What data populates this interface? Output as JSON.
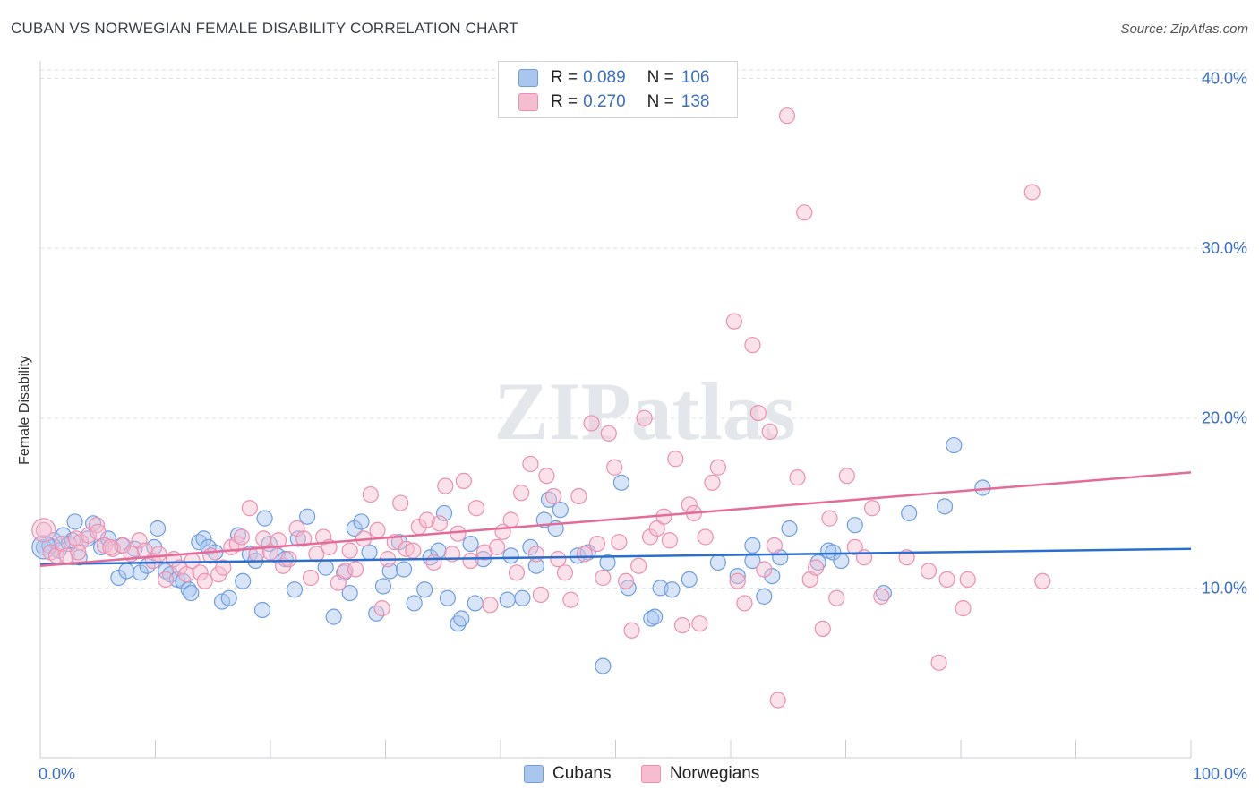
{
  "title": "CUBAN VS NORWEGIAN FEMALE DISABILITY CORRELATION CHART",
  "source": "Source: ZipAtlas.com",
  "watermark": "ZIPatlas",
  "legend": {
    "rows": [
      {
        "r_label": "R =",
        "r_value": "0.089",
        "n_label": "N =",
        "n_value": "106"
      },
      {
        "r_label": "R =",
        "r_value": "0.270",
        "n_label": "N =",
        "n_value": "138"
      }
    ]
  },
  "bottom_legend": [
    "Cubans",
    "Norwegians"
  ],
  "colors": {
    "cubans_fill": "#a9c6ef",
    "cubans_stroke": "#6f9de0",
    "cubans_line": "#2b6fce",
    "norwegians_fill": "#f6bcd0",
    "norwegians_stroke": "#ec8fb0",
    "norwegians_line": "#e46a98",
    "tick_text": "#3a6fc4",
    "grid": "#dcdfe4"
  },
  "chart_data": {
    "type": "scatter",
    "title": "CUBAN VS NORWEGIAN FEMALE DISABILITY CORRELATION CHART",
    "xlabel": "",
    "ylabel": "Female Disability",
    "xlim": [
      0,
      100
    ],
    "ylim": [
      0,
      40.5
    ],
    "x_tick_labels": [
      "0.0%",
      "100.0%"
    ],
    "y_ticks": [
      10,
      20,
      30,
      40
    ],
    "y_tick_labels": [
      "10.0%",
      "20.0%",
      "30.0%",
      "40.0%"
    ],
    "grid": true,
    "legend_position": "top-center",
    "series": [
      {
        "name": "Cubans",
        "R": 0.089,
        "N": 106,
        "trend": [
          [
            0,
            11.4
          ],
          [
            100,
            12.3
          ]
        ],
        "points": [
          [
            0.3,
            12.4
          ],
          [
            0.8,
            12.5
          ],
          [
            1.2,
            12.8
          ],
          [
            1.6,
            12.2
          ],
          [
            2.0,
            13.1
          ],
          [
            2.5,
            12.6
          ],
          [
            3.0,
            13.9
          ],
          [
            3.4,
            11.8
          ],
          [
            4.1,
            12.9
          ],
          [
            4.6,
            13.8
          ],
          [
            5.3,
            12.4
          ],
          [
            5.9,
            12.9
          ],
          [
            6.8,
            10.6
          ],
          [
            7.1,
            12.5
          ],
          [
            7.5,
            11.0
          ],
          [
            8.2,
            12.3
          ],
          [
            8.7,
            10.9
          ],
          [
            9.3,
            11.3
          ],
          [
            9.9,
            12.4
          ],
          [
            10.2,
            13.5
          ],
          [
            10.9,
            11.0
          ],
          [
            11.3,
            10.8
          ],
          [
            11.9,
            10.5
          ],
          [
            12.4,
            10.4
          ],
          [
            12.9,
            9.9
          ],
          [
            13.1,
            9.7
          ],
          [
            13.8,
            12.7
          ],
          [
            14.2,
            12.9
          ],
          [
            14.6,
            12.4
          ],
          [
            15.2,
            12.1
          ],
          [
            15.8,
            9.2
          ],
          [
            16.4,
            9.4
          ],
          [
            17.2,
            13.1
          ],
          [
            17.6,
            10.4
          ],
          [
            18.2,
            12.0
          ],
          [
            18.7,
            11.6
          ],
          [
            19.3,
            8.7
          ],
          [
            19.5,
            14.1
          ],
          [
            19.9,
            12.6
          ],
          [
            20.6,
            11.9
          ],
          [
            21.3,
            11.7
          ],
          [
            22.1,
            9.9
          ],
          [
            22.4,
            12.9
          ],
          [
            23.2,
            14.2
          ],
          [
            24.8,
            11.2
          ],
          [
            25.5,
            8.3
          ],
          [
            26.4,
            10.9
          ],
          [
            26.9,
            9.7
          ],
          [
            27.3,
            13.5
          ],
          [
            27.9,
            13.9
          ],
          [
            28.6,
            12.1
          ],
          [
            29.2,
            8.5
          ],
          [
            29.8,
            10.1
          ],
          [
            30.4,
            11.0
          ],
          [
            31.2,
            12.7
          ],
          [
            31.6,
            11.1
          ],
          [
            32.5,
            9.1
          ],
          [
            33.4,
            9.9
          ],
          [
            33.9,
            11.8
          ],
          [
            34.6,
            12.2
          ],
          [
            35.1,
            14.4
          ],
          [
            35.4,
            9.4
          ],
          [
            36.3,
            7.9
          ],
          [
            36.6,
            8.2
          ],
          [
            37.4,
            12.6
          ],
          [
            37.8,
            9.1
          ],
          [
            38.5,
            11.7
          ],
          [
            40.6,
            9.3
          ],
          [
            40.9,
            11.9
          ],
          [
            41.9,
            9.4
          ],
          [
            42.6,
            12.4
          ],
          [
            43.1,
            11.3
          ],
          [
            43.8,
            14.0
          ],
          [
            44.2,
            15.2
          ],
          [
            44.8,
            13.5
          ],
          [
            45.2,
            14.6
          ],
          [
            46.7,
            11.9
          ],
          [
            47.6,
            12.1
          ],
          [
            48.9,
            5.4
          ],
          [
            49.3,
            11.5
          ],
          [
            50.5,
            16.2
          ],
          [
            51.1,
            10.0
          ],
          [
            53.1,
            8.2
          ],
          [
            53.4,
            8.3
          ],
          [
            53.9,
            10.0
          ],
          [
            54.9,
            9.9
          ],
          [
            56.4,
            10.5
          ],
          [
            58.9,
            11.5
          ],
          [
            60.6,
            10.7
          ],
          [
            61.9,
            12.5
          ],
          [
            61.9,
            11.6
          ],
          [
            62.9,
            9.5
          ],
          [
            63.6,
            10.7
          ],
          [
            64.3,
            11.8
          ],
          [
            65.1,
            13.5
          ],
          [
            67.6,
            11.5
          ],
          [
            68.5,
            12.2
          ],
          [
            68.9,
            12.1
          ],
          [
            69.6,
            11.6
          ],
          [
            70.8,
            13.7
          ],
          [
            73.3,
            9.7
          ],
          [
            75.5,
            14.4
          ],
          [
            78.6,
            14.8
          ],
          [
            79.4,
            18.4
          ],
          [
            81.9,
            15.9
          ],
          [
            2.8,
            12.8
          ]
        ]
      },
      {
        "name": "Norwegians",
        "R": 0.27,
        "N": 138,
        "trend": [
          [
            0,
            11.3
          ],
          [
            100,
            16.8
          ]
        ],
        "points": [
          [
            0.3,
            13.4
          ],
          [
            0.9,
            12.1
          ],
          [
            1.4,
            11.9
          ],
          [
            1.9,
            12.6
          ],
          [
            2.3,
            11.9
          ],
          [
            3.1,
            12.9
          ],
          [
            3.5,
            12.7
          ],
          [
            4.2,
            13.1
          ],
          [
            4.9,
            13.7
          ],
          [
            5.6,
            12.5
          ],
          [
            6.3,
            12.3
          ],
          [
            7.2,
            12.5
          ],
          [
            7.9,
            12.0
          ],
          [
            8.6,
            12.8
          ],
          [
            9.1,
            12.2
          ],
          [
            9.8,
            11.6
          ],
          [
            10.3,
            12.0
          ],
          [
            10.9,
            10.5
          ],
          [
            11.6,
            11.7
          ],
          [
            12.1,
            11.2
          ],
          [
            12.7,
            10.8
          ],
          [
            13.2,
            11.6
          ],
          [
            13.9,
            10.9
          ],
          [
            14.3,
            10.4
          ],
          [
            14.8,
            11.9
          ],
          [
            15.5,
            10.8
          ],
          [
            15.9,
            11.2
          ],
          [
            16.6,
            12.4
          ],
          [
            17.1,
            12.6
          ],
          [
            17.5,
            13.0
          ],
          [
            18.2,
            14.7
          ],
          [
            18.8,
            12.0
          ],
          [
            19.4,
            12.9
          ],
          [
            20.0,
            12.1
          ],
          [
            20.7,
            12.8
          ],
          [
            21.1,
            11.3
          ],
          [
            21.6,
            11.7
          ],
          [
            22.3,
            13.5
          ],
          [
            22.9,
            12.9
          ],
          [
            23.5,
            10.6
          ],
          [
            24.0,
            12.0
          ],
          [
            24.6,
            13.0
          ],
          [
            25.1,
            12.4
          ],
          [
            25.9,
            10.3
          ],
          [
            26.5,
            11.0
          ],
          [
            26.9,
            12.2
          ],
          [
            27.4,
            11.1
          ],
          [
            28.1,
            12.9
          ],
          [
            28.7,
            15.5
          ],
          [
            29.3,
            13.4
          ],
          [
            29.7,
            8.8
          ],
          [
            30.2,
            11.7
          ],
          [
            30.8,
            12.7
          ],
          [
            31.3,
            15.0
          ],
          [
            31.8,
            12.3
          ],
          [
            32.4,
            12.2
          ],
          [
            32.9,
            13.6
          ],
          [
            33.6,
            14.0
          ],
          [
            34.2,
            11.5
          ],
          [
            34.7,
            13.8
          ],
          [
            35.2,
            16.0
          ],
          [
            35.8,
            12.0
          ],
          [
            36.3,
            13.2
          ],
          [
            36.8,
            16.3
          ],
          [
            37.4,
            11.6
          ],
          [
            37.9,
            14.7
          ],
          [
            38.6,
            12.1
          ],
          [
            39.1,
            9.0
          ],
          [
            39.7,
            12.4
          ],
          [
            40.2,
            13.3
          ],
          [
            40.9,
            14.0
          ],
          [
            41.4,
            10.9
          ],
          [
            41.8,
            15.6
          ],
          [
            42.6,
            17.3
          ],
          [
            43.1,
            12.0
          ],
          [
            43.5,
            9.6
          ],
          [
            44.0,
            16.6
          ],
          [
            44.6,
            15.4
          ],
          [
            45.0,
            11.7
          ],
          [
            45.6,
            10.9
          ],
          [
            46.1,
            9.3
          ],
          [
            46.8,
            15.4
          ],
          [
            47.3,
            12.0
          ],
          [
            47.9,
            19.7
          ],
          [
            48.4,
            12.6
          ],
          [
            48.9,
            10.6
          ],
          [
            49.4,
            19.1
          ],
          [
            49.9,
            17.1
          ],
          [
            50.3,
            12.7
          ],
          [
            50.9,
            10.4
          ],
          [
            51.4,
            7.5
          ],
          [
            52.0,
            11.3
          ],
          [
            52.5,
            20.0
          ],
          [
            53.0,
            13.0
          ],
          [
            53.6,
            13.5
          ],
          [
            54.2,
            14.2
          ],
          [
            54.7,
            12.8
          ],
          [
            55.2,
            17.6
          ],
          [
            55.8,
            7.8
          ],
          [
            56.4,
            14.9
          ],
          [
            56.8,
            14.4
          ],
          [
            57.3,
            7.9
          ],
          [
            57.8,
            13.0
          ],
          [
            58.4,
            16.2
          ],
          [
            58.9,
            17.1
          ],
          [
            60.3,
            25.7
          ],
          [
            60.6,
            10.4
          ],
          [
            61.2,
            9.1
          ],
          [
            61.9,
            24.3
          ],
          [
            62.4,
            20.3
          ],
          [
            62.9,
            11.1
          ],
          [
            63.4,
            19.2
          ],
          [
            63.8,
            12.5
          ],
          [
            64.9,
            37.8
          ],
          [
            65.8,
            16.5
          ],
          [
            66.4,
            32.1
          ],
          [
            66.9,
            10.5
          ],
          [
            67.4,
            11.2
          ],
          [
            68.0,
            7.6
          ],
          [
            68.6,
            14.1
          ],
          [
            69.2,
            9.4
          ],
          [
            70.1,
            16.6
          ],
          [
            70.8,
            12.4
          ],
          [
            71.6,
            11.8
          ],
          [
            72.3,
            14.7
          ],
          [
            73.1,
            9.5
          ],
          [
            75.3,
            11.8
          ],
          [
            77.2,
            11.0
          ],
          [
            78.1,
            5.6
          ],
          [
            78.8,
            10.5
          ],
          [
            80.2,
            8.8
          ],
          [
            80.6,
            10.5
          ],
          [
            86.2,
            33.3
          ],
          [
            87.1,
            10.4
          ],
          [
            64.1,
            3.4
          ],
          [
            3.3,
            12.1
          ],
          [
            5.0,
            13.3
          ],
          [
            6.1,
            12.4
          ]
        ]
      }
    ]
  }
}
